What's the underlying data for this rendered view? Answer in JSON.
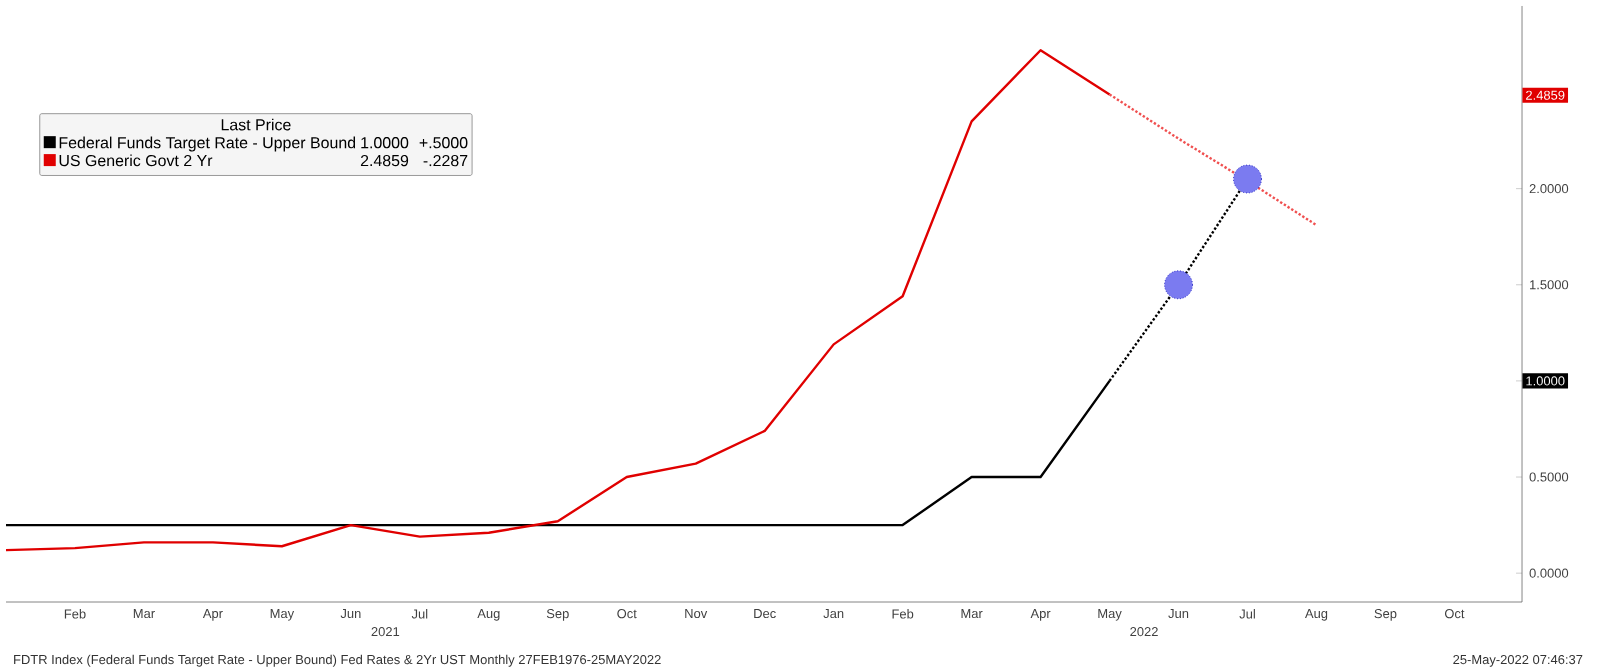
{
  "chart_data": {
    "type": "line",
    "categories": [
      null,
      "Feb",
      "Mar",
      "Apr",
      "May",
      "Jun",
      "Jul",
      "Aug",
      "Sep",
      "Oct",
      "Nov",
      "Dec",
      "Jan",
      "Feb",
      "Mar",
      "Apr",
      "May",
      "Jun",
      "Jul",
      "Aug",
      "Sep",
      "Oct"
    ],
    "series": [
      {
        "name": "Federal Funds Target Rate - Upper Bound",
        "color": "#000000",
        "values": [
          0.25,
          0.25,
          0.25,
          0.25,
          0.25,
          0.25,
          0.25,
          0.25,
          0.25,
          0.25,
          0.25,
          0.25,
          0.25,
          0.25,
          0.5,
          0.5,
          1.0,
          null,
          null,
          null,
          null,
          null
        ]
      },
      {
        "name": "US Generic Govt 2 Yr",
        "color": "#e00000",
        "values": [
          0.12,
          0.13,
          0.16,
          0.16,
          0.14,
          0.25,
          0.19,
          0.21,
          0.27,
          0.5,
          0.57,
          0.74,
          1.19,
          1.44,
          2.35,
          2.72,
          2.49,
          null,
          null,
          null,
          null,
          null
        ]
      },
      {
        "color": "#000000",
        "line_style": "dotted",
        "values": [
          null,
          null,
          null,
          null,
          null,
          null,
          null,
          null,
          null,
          null,
          null,
          null,
          null,
          null,
          null,
          null,
          1.0,
          1.5,
          2.05,
          null,
          null,
          null
        ]
      },
      {
        "color": "#f05050",
        "line_style": "dotted",
        "values": [
          null,
          null,
          null,
          null,
          null,
          null,
          null,
          null,
          null,
          null,
          null,
          null,
          null,
          null,
          null,
          null,
          2.49,
          2.26,
          2.04,
          1.81,
          null,
          null
        ]
      },
      {
        "type": "scatter",
        "color": "#7b7bf0",
        "marker": "circle",
        "values": [
          null,
          null,
          null,
          null,
          null,
          null,
          null,
          null,
          null,
          null,
          null,
          null,
          null,
          null,
          null,
          null,
          null,
          1.5,
          2.05,
          null,
          null,
          null
        ]
      }
    ],
    "ylim": [
      -0.15,
      2.95
    ],
    "yticks": [
      {
        "value": 0,
        "label": "0.0000"
      },
      {
        "value": 0.5,
        "label": "0.5000"
      },
      {
        "value": 1.0,
        "label": null
      },
      {
        "value": 1.5,
        "label": "1.5000"
      },
      {
        "value": 2.0,
        "label": "2.0000"
      }
    ],
    "legend": "top left",
    "legend_title": "Last Price",
    "grid": false,
    "annotations": [
      "1.0000",
      "+.5000",
      "2.4859",
      "-.2287",
      {
        "text": "2.4859",
        "y": 2.4859
      },
      "1.0000",
      "2021",
      "2022",
      "FDTR Index (Federal Funds Target Rate - Upper Bound) Fed Rates  & 2Yr UST  Monthly 27FEB1976-25MAY2022",
      "25-May-2022 07:46:37"
    ]
  }
}
